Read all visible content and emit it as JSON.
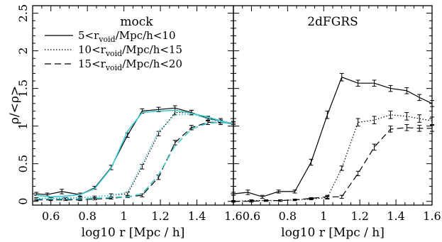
{
  "chart_data": [
    {
      "type": "line",
      "title": "mock",
      "xlabel": "log10 r [Mpc / h]",
      "ylabel": "ρ/<ρ>",
      "xlim": [
        0.5,
        1.6
      ],
      "ylim": [
        -0.05,
        2.6
      ],
      "x_ticks": [
        "0.6",
        "0.8",
        "1",
        "1.2",
        "1.4",
        "1.6"
      ],
      "y_ticks": [
        "0",
        "0.5",
        "1",
        "1.5",
        "2",
        "2.5"
      ],
      "grid": false,
      "legend_position": "top-right",
      "legend": [
        {
          "style": "solid",
          "label_pre": "5<r",
          "sub": "void",
          "label_post": "/Mpc/h<10"
        },
        {
          "style": "dotted",
          "label_pre": "10<r",
          "sub": "void",
          "label_post": "/Mpc/h<15"
        },
        {
          "style": "dashed",
          "label_pre": "15<r",
          "sub": "void",
          "label_post": "/Mpc/h<20"
        }
      ],
      "series": [
        {
          "style": "solid",
          "color": "#000000",
          "x": [
            0.52,
            0.58,
            0.66,
            0.76,
            0.84,
            0.93,
            1.02,
            1.1,
            1.19,
            1.28,
            1.37,
            1.46,
            1.53,
            1.6
          ],
          "y": [
            0.1,
            0.09,
            0.13,
            0.09,
            0.18,
            0.45,
            0.88,
            1.2,
            1.22,
            1.24,
            1.18,
            1.1,
            1.07,
            1.02
          ],
          "err": [
            0.02,
            0.02,
            0.03,
            0.02,
            0.02,
            0.03,
            0.03,
            0.03,
            0.03,
            0.03,
            0.03,
            0.03,
            0.03,
            0.02
          ]
        },
        {
          "style": "dotted",
          "color": "#000000",
          "x": [
            0.52,
            0.6,
            0.68,
            0.76,
            0.84,
            0.93,
            1.02,
            1.1,
            1.19,
            1.28,
            1.37,
            1.46,
            1.53,
            1.6
          ],
          "y": [
            0.04,
            0.04,
            0.04,
            0.05,
            0.06,
            0.08,
            0.1,
            0.46,
            0.9,
            1.18,
            1.18,
            1.1,
            1.05,
            1.04
          ],
          "err": [
            0.01,
            0.01,
            0.01,
            0.01,
            0.01,
            0.02,
            0.02,
            0.03,
            0.03,
            0.03,
            0.03,
            0.03,
            0.03,
            0.02
          ]
        },
        {
          "style": "dashed",
          "color": "#000000",
          "x": [
            0.52,
            0.6,
            0.68,
            0.76,
            0.84,
            0.93,
            1.02,
            1.1,
            1.19,
            1.28,
            1.37,
            1.46,
            1.53,
            1.6
          ],
          "y": [
            0.02,
            0.02,
            0.02,
            0.02,
            0.03,
            0.04,
            0.06,
            0.08,
            0.32,
            0.78,
            0.98,
            1.05,
            1.05,
            1.04
          ],
          "err": [
            0.01,
            0.01,
            0.01,
            0.01,
            0.01,
            0.01,
            0.01,
            0.02,
            0.03,
            0.03,
            0.03,
            0.03,
            0.03,
            0.02
          ]
        },
        {
          "style": "solid",
          "color": "#3cc6cf",
          "x": [
            0.52,
            0.6,
            0.68,
            0.76,
            0.84,
            0.93,
            1.02,
            1.1,
            1.19,
            1.28,
            1.37,
            1.46,
            1.53,
            1.6
          ],
          "y": [
            0.08,
            0.06,
            0.07,
            0.09,
            0.17,
            0.44,
            0.93,
            1.18,
            1.2,
            1.21,
            1.17,
            1.12,
            1.07,
            1.03
          ]
        },
        {
          "style": "dotted",
          "color": "#3cc6cf",
          "x": [
            0.52,
            0.6,
            0.68,
            0.76,
            0.84,
            0.93,
            1.02,
            1.1,
            1.19,
            1.28,
            1.37,
            1.46,
            1.53,
            1.6
          ],
          "y": [
            0.04,
            0.04,
            0.05,
            0.05,
            0.06,
            0.08,
            0.12,
            0.5,
            0.93,
            1.15,
            1.16,
            1.1,
            1.06,
            1.03
          ]
        },
        {
          "style": "dashed",
          "color": "#3cc6cf",
          "x": [
            0.52,
            0.6,
            0.68,
            0.76,
            0.84,
            0.93,
            1.02,
            1.1,
            1.19,
            1.28,
            1.37,
            1.46,
            1.53,
            1.6
          ],
          "y": [
            0.03,
            0.03,
            0.03,
            0.03,
            0.04,
            0.05,
            0.06,
            0.1,
            0.35,
            0.74,
            0.96,
            1.04,
            1.05,
            1.03
          ]
        }
      ]
    },
    {
      "type": "line",
      "title": "2dFGRS",
      "xlabel": "log10 r [Mpc / h]",
      "xlim": [
        0.5,
        1.6
      ],
      "ylim": [
        -0.05,
        2.6
      ],
      "x_ticks": [
        "0.6",
        "0.8",
        "1",
        "1.2",
        "1.4",
        "1.6"
      ],
      "grid": false,
      "series": [
        {
          "style": "solid",
          "color": "#000000",
          "x": [
            0.5,
            0.58,
            0.66,
            0.75,
            0.84,
            0.93,
            1.02,
            1.1,
            1.19,
            1.28,
            1.37,
            1.46,
            1.53,
            1.6
          ],
          "y": [
            0.1,
            0.12,
            0.06,
            0.13,
            0.13,
            0.52,
            1.15,
            1.65,
            1.57,
            1.57,
            1.5,
            1.47,
            1.38,
            1.3
          ],
          "err": [
            0.02,
            0.03,
            0.02,
            0.02,
            0.02,
            0.04,
            0.05,
            0.05,
            0.04,
            0.04,
            0.04,
            0.04,
            0.04,
            0.04
          ]
        },
        {
          "style": "dotted",
          "color": "#000000",
          "x": [
            0.5,
            0.6,
            0.68,
            0.76,
            0.84,
            0.93,
            1.02,
            1.1,
            1.19,
            1.28,
            1.37,
            1.46,
            1.53,
            1.6
          ],
          "y": [
            0.0,
            0.01,
            0.01,
            0.01,
            0.02,
            0.03,
            0.05,
            0.44,
            1.05,
            1.08,
            1.15,
            1.13,
            1.1,
            1.07
          ],
          "err": [
            0.01,
            0.01,
            0.01,
            0.01,
            0.01,
            0.01,
            0.02,
            0.03,
            0.05,
            0.05,
            0.05,
            0.05,
            0.05,
            0.05
          ]
        },
        {
          "style": "dashed",
          "color": "#000000",
          "x": [
            0.5,
            0.6,
            0.68,
            0.76,
            0.84,
            0.93,
            1.02,
            1.1,
            1.19,
            1.28,
            1.37,
            1.46,
            1.53,
            1.6
          ],
          "y": [
            0.0,
            0.0,
            0.01,
            0.01,
            0.02,
            0.04,
            0.06,
            0.06,
            0.37,
            0.72,
            0.96,
            0.98,
            0.97,
            0.97
          ],
          "err": [
            0.01,
            0.01,
            0.01,
            0.01,
            0.01,
            0.01,
            0.02,
            0.02,
            0.03,
            0.04,
            0.04,
            0.04,
            0.04,
            0.04
          ]
        }
      ]
    }
  ]
}
